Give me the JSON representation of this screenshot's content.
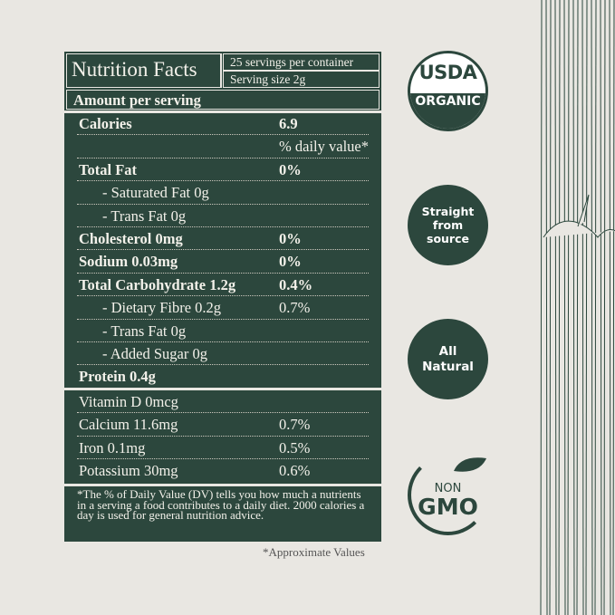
{
  "label": {
    "title": "Nutrition Facts",
    "servings": "25 servings per container",
    "serving_size": "Serving size 2g",
    "amount_per_serving": "Amount per serving",
    "calories": {
      "label": "Calories",
      "value": "6.9"
    },
    "daily_value_header": "% daily value*",
    "nutrients": [
      {
        "label": "Total Fat",
        "value": "0%"
      },
      {
        "label": "- Saturated Fat 0g",
        "value": ""
      },
      {
        "label": "- Trans Fat 0g",
        "value": ""
      },
      {
        "label": "Cholesterol 0mg",
        "value": "0%"
      },
      {
        "label": "Sodium 0.03mg",
        "value": "0%"
      },
      {
        "label": "Total Carbohydrate 1.2g",
        "value": "0.4%"
      },
      {
        "label": "- Dietary Fibre 0.2g",
        "value": "0.7%"
      },
      {
        "label": "- Trans Fat 0g",
        "value": ""
      },
      {
        "label": "- Added Sugar 0g",
        "value": ""
      },
      {
        "label": "Protein 0.4g",
        "value": ""
      }
    ],
    "vitamins": [
      {
        "label": "Vitamin D 0mcg",
        "value": ""
      },
      {
        "label": "Calcium 11.6mg",
        "value": "0.7%"
      },
      {
        "label": "Iron 0.1mg",
        "value": "0.5%"
      },
      {
        "label": "Potassium 30mg",
        "value": "0.6%"
      }
    ],
    "footnote": "*The % of Daily Value (DV) tells you how much a nutrients in a serving a food contributes to a daily diet. 2000 calories a day is used for general nutrition advice.",
    "approx_note": "*Approximate Values"
  },
  "badges": {
    "usda_top": "USDA",
    "usda_bottom": "ORGANIC",
    "straight": [
      "Straight",
      "from",
      "source"
    ],
    "natural": [
      "All",
      "Natural"
    ],
    "non": "NON",
    "gmo": "GMO"
  },
  "colors": {
    "green": "#2c473d",
    "background": "#e9e7e2"
  }
}
